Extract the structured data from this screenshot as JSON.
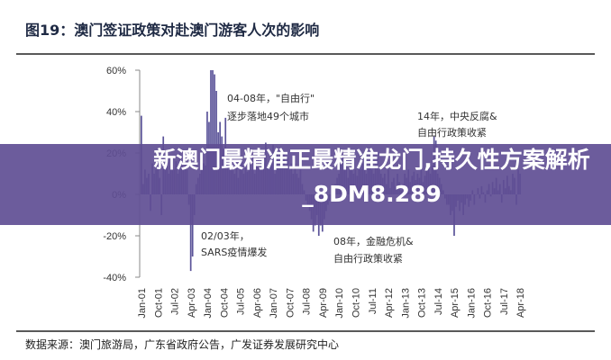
{
  "chart_data": {
    "type": "bar",
    "title": "图19：澳门签证政策对赴澳门游客人次的影响",
    "xlabel": "",
    "ylabel": "",
    "ylim": [
      -40,
      60
    ],
    "y_ticks": [
      "60%",
      "40%",
      "20%",
      "0%",
      "-20%",
      "-40%"
    ],
    "y_tick_values": [
      60,
      40,
      20,
      0,
      -20,
      -40
    ],
    "x_ticks": [
      "Jan-01",
      "Oct-01",
      "Jul-02",
      "Apr-03",
      "Jan-04",
      "Oct-04",
      "Jul-05",
      "Apr-06",
      "Jan-07",
      "Oct-07",
      "Jul-08",
      "Apr-09",
      "Jan-10",
      "Oct-10",
      "Jul-11",
      "Apr-12",
      "Jan-13",
      "Oct-13",
      "Jul-14",
      "Apr-15",
      "Jan-16",
      "Oct-16",
      "Jul-17",
      "Apr-18"
    ],
    "x_frequency": "monthly",
    "x_start": "Jan-01",
    "grid": false,
    "bar_color": "#5b5499",
    "values": [
      38,
      5,
      12,
      8,
      10,
      -8,
      15,
      10,
      12,
      14,
      8,
      -10,
      28,
      12,
      15,
      10,
      14,
      18,
      12,
      16,
      10,
      20,
      14,
      12,
      15,
      12,
      -5,
      -37,
      -30,
      -10,
      5,
      8,
      10,
      12,
      15,
      14,
      40,
      35,
      60,
      60,
      58,
      50,
      30,
      35,
      28,
      22,
      37,
      20,
      15,
      12,
      18,
      10,
      14,
      8,
      12,
      16,
      10,
      13,
      11,
      15,
      12,
      18,
      10,
      14,
      22,
      16,
      12,
      15,
      25,
      14,
      12,
      18,
      24,
      10,
      20,
      18,
      22,
      16,
      20,
      14,
      18,
      12,
      15,
      10,
      15,
      10,
      8,
      12,
      5,
      2,
      -3,
      -5,
      -8,
      -12,
      -18,
      -15,
      -10,
      -20,
      -15,
      -18,
      -12,
      -8,
      -5,
      -3,
      0,
      3,
      5,
      8,
      10,
      15,
      18,
      20,
      12,
      8,
      14,
      16,
      10,
      12,
      9,
      14,
      12,
      15,
      18,
      10,
      14,
      16,
      12,
      10,
      15,
      18,
      12,
      10,
      8,
      10,
      5,
      12,
      3,
      6,
      8,
      4,
      10,
      6,
      2,
      5,
      10,
      8,
      12,
      6,
      9,
      11,
      7,
      10,
      8,
      12,
      6,
      9,
      12,
      15,
      10,
      14,
      28,
      26,
      10,
      8,
      5,
      2,
      -2,
      -5,
      -5,
      -10,
      -8,
      -20,
      -6,
      -3,
      -8,
      -4,
      -10,
      -5,
      -2,
      -6,
      -3,
      2,
      -5,
      0,
      3,
      -2,
      4,
      1,
      -4,
      2,
      5,
      -1,
      6,
      3,
      8,
      2,
      5,
      -4,
      7,
      3,
      9,
      4,
      2,
      10,
      8,
      -5,
      12,
      10
    ],
    "annotations": [
      {
        "line1": "04-08年，\"自由行\"",
        "line2": "逐步落地49个城市"
      },
      {
        "line1": "14年，中央反腐&",
        "line2": "自由行政策收紧"
      },
      {
        "line1": "02/03年，",
        "line2": "SARS疫情爆发"
      },
      {
        "line1": "08年，金融危机&",
        "line2": "自由行政策收紧"
      }
    ],
    "source": "数据来源：澳门旅游局，广东省政府公告，广发证券发展研究中心"
  },
  "banner": {
    "line1": "新澳门最精准正最精准龙门,持久性方案解析",
    "line2": "_8DM8.289"
  }
}
